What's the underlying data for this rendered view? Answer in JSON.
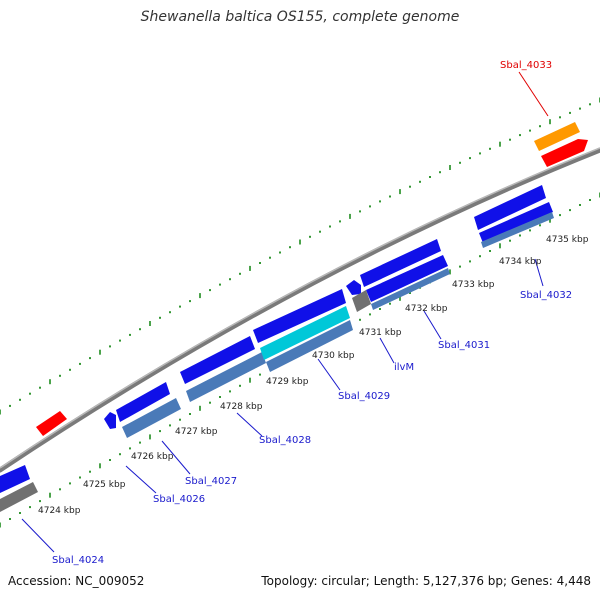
{
  "title": "Shewanella baltica OS155, complete genome",
  "footer": {
    "accession": "Accession: NC_009052",
    "summary": "Topology: circular; Length: 5,127,376 bp; Genes: 4,448"
  },
  "colors": {
    "backbone": "#8a8a8a",
    "tick": "#1e8c1e",
    "gene_label": "#1a1acc",
    "highlight_label": "#e00000",
    "cds": "#1010e8",
    "gene": "#4a7ab8",
    "rna": "#00c8d8",
    "pseudo": "#707070",
    "highlight_cds": "#ff0000",
    "highlight_gene": "#ff9900"
  },
  "scale_labels": [
    "4724 kbp",
    "4725 kbp",
    "4726 kbp",
    "4727 kbp",
    "4728 kbp",
    "4729 kbp",
    "4730 kbp",
    "4731 kbp",
    "4732 kbp",
    "4733 kbp",
    "4734 kbp",
    "4735 kbp"
  ],
  "gene_labels": [
    "Sbal_4024",
    "Sbal_4026",
    "Sbal_4027",
    "Sbal_4028",
    "Sbal_4029",
    "ilvM",
    "Sbal_4031",
    "Sbal_4032",
    "Sbal_4033"
  ]
}
